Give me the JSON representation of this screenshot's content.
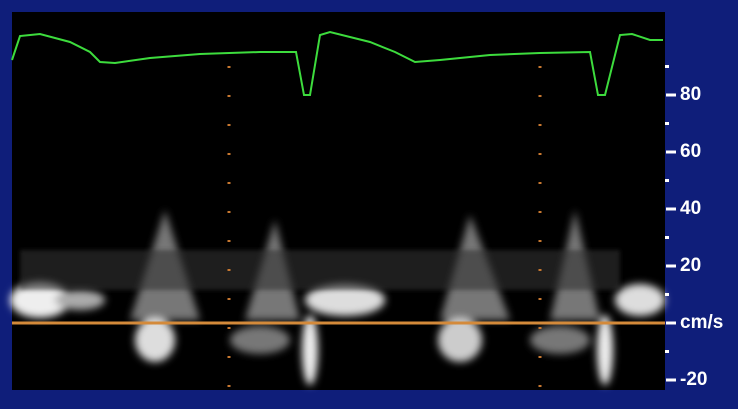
{
  "velocity_scale": {
    "ticks": [
      "80",
      "60",
      "40",
      "20"
    ],
    "unit": "cm/s",
    "negative_ticks": [
      "-20"
    ]
  }
}
